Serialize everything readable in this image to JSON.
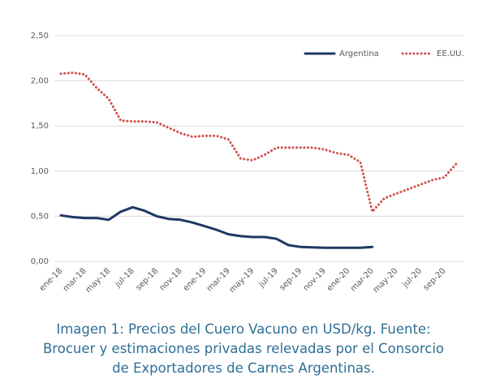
{
  "chart_data": {
    "type": "line",
    "categories": [
      "ene-18",
      null,
      "mar-18",
      null,
      "may-18",
      null,
      "jul-18",
      null,
      "sep-18",
      null,
      "nov-18",
      null,
      "ene-19",
      null,
      "mar-19",
      null,
      "may-19",
      null,
      "jul-19",
      null,
      "sep-19",
      null,
      "nov-19",
      null,
      "ene-20",
      null,
      "mar-20",
      null,
      "may-20",
      null,
      "jul-20",
      null,
      "sep-20",
      null
    ],
    "series": [
      {
        "name": "Argentina",
        "color": "#1f3864",
        "style": "solid",
        "values": [
          0.51,
          0.49,
          0.48,
          0.48,
          0.46,
          0.55,
          0.6,
          0.56,
          0.5,
          0.47,
          0.46,
          0.43,
          0.39,
          0.35,
          0.3,
          0.28,
          0.27,
          0.27,
          0.25,
          0.18,
          0.16,
          0.155,
          0.15,
          0.15,
          0.15,
          0.15,
          0.16,
          null,
          null,
          null,
          null,
          null,
          null,
          null
        ]
      },
      {
        "name": "EE.UU.",
        "color": "#d0504d",
        "style": "dotted",
        "values": [
          2.08,
          2.09,
          2.07,
          1.92,
          1.8,
          1.56,
          1.55,
          1.55,
          1.54,
          1.48,
          1.42,
          1.38,
          1.39,
          1.39,
          1.35,
          1.14,
          1.12,
          1.18,
          1.26,
          1.26,
          1.26,
          1.26,
          1.24,
          1.2,
          1.18,
          1.1,
          0.55,
          0.7,
          0.75,
          0.8,
          0.85,
          0.9,
          0.93,
          1.08
        ]
      }
    ],
    "ylim": [
      0,
      2.5
    ],
    "yticks": [
      {
        "value": 0,
        "label": "0,00"
      },
      {
        "value": 0.5,
        "label": "0,50"
      },
      {
        "value": 1,
        "label": "1,00"
      },
      {
        "value": 1.5,
        "label": "1,50"
      },
      {
        "value": 2,
        "label": "2,00"
      },
      {
        "value": 2.5,
        "label": "2,50"
      }
    ],
    "grid": true,
    "legend": "top-right"
  },
  "caption": [
    "Imagen 1: Precios del Cuero Vacuno en USD/kg. Fuente:",
    "Brocuer y estimaciones privadas relevadas por el Consorcio",
    "de Exportadores de Carnes Argentinas."
  ]
}
